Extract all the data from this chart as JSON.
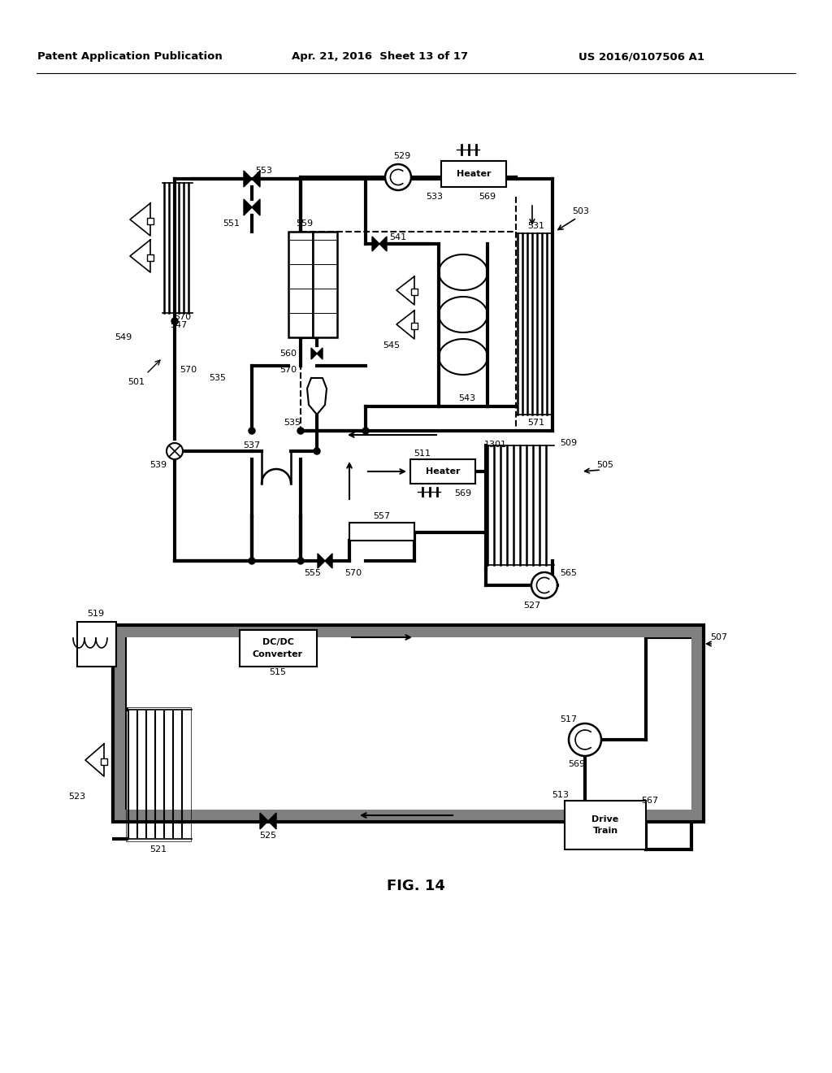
{
  "title_left": "Patent Application Publication",
  "title_center": "Apr. 21, 2016  Sheet 13 of 17",
  "title_right": "US 2016/0107506 A1",
  "fig_label": "FIG. 14",
  "bg_color": "#ffffff",
  "line_color": "#000000",
  "text_color": "#000000"
}
